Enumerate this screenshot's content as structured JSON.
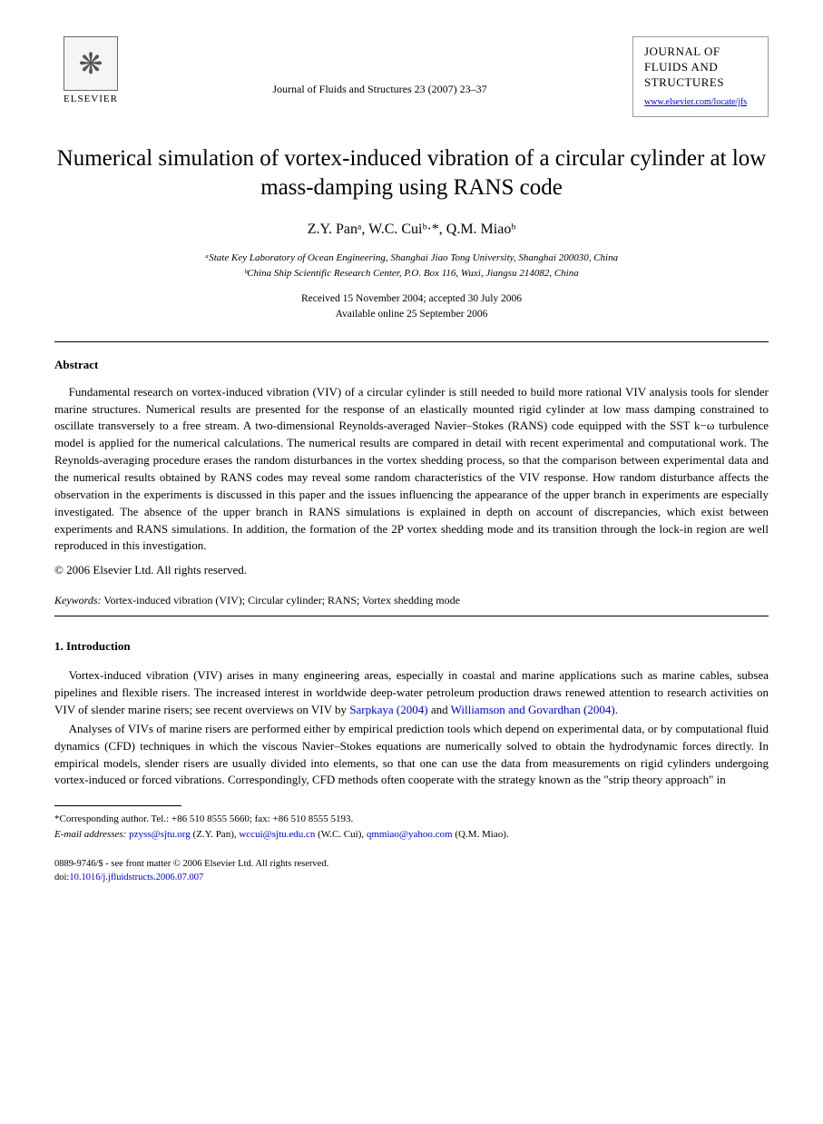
{
  "publisher": {
    "name": "ELSEVIER",
    "logo_glyph": "❋"
  },
  "journal": {
    "reference_line": "Journal of Fluids and Structures 23 (2007) 23–37",
    "box_title": "JOURNAL OF FLUIDS AND STRUCTURES",
    "url": "www.elsevier.com/locate/jfs"
  },
  "article": {
    "title": "Numerical simulation of vortex-induced vibration of a circular cylinder at low mass-damping using RANS code",
    "authors_html": "Z.Y. Panᵃ, W.C. Cuiᵇ·*, Q.M. Miaoᵇ",
    "affiliations": {
      "a": "ᵃState Key Laboratory of Ocean Engineering, Shanghai Jiao Tong University, Shanghai 200030, China",
      "b": "ᵇChina Ship Scientific Research Center, P.O. Box 116, Wuxi, Jiangsu 214082, China"
    },
    "dates": {
      "received_accepted": "Received 15 November 2004; accepted 30 July 2006",
      "online": "Available online 25 September 2006"
    }
  },
  "abstract": {
    "heading": "Abstract",
    "body": "Fundamental research on vortex-induced vibration (VIV) of a circular cylinder is still needed to build more rational VIV analysis tools for slender marine structures. Numerical results are presented for the response of an elastically mounted rigid cylinder at low mass damping constrained to oscillate transversely to a free stream. A two-dimensional Reynolds-averaged Navier–Stokes (RANS) code equipped with the SST k−ω turbulence model is applied for the numerical calculations. The numerical results are compared in detail with recent experimental and computational work. The Reynolds-averaging procedure erases the random disturbances in the vortex shedding process, so that the comparison between experimental data and the numerical results obtained by RANS codes may reveal some random characteristics of the VIV response. How random disturbance affects the observation in the experiments is discussed in this paper and the issues influencing the appearance of the upper branch in experiments are especially investigated. The absence of the upper branch in RANS simulations is explained in depth on account of discrepancies, which exist between experiments and RANS simulations. In addition, the formation of the 2P vortex shedding mode and its transition through the lock-in region are well reproduced in this investigation.",
    "copyright": "© 2006 Elsevier Ltd. All rights reserved."
  },
  "keywords": {
    "label": "Keywords:",
    "text": " Vortex-induced vibration (VIV); Circular cylinder; RANS; Vortex shedding mode"
  },
  "section": {
    "heading": "1.  Introduction",
    "para1_pre": "Vortex-induced vibration (VIV) arises in many engineering areas, especially in coastal and marine applications such as marine cables, subsea pipelines and flexible risers. The increased interest in worldwide deep-water petroleum production draws renewed attention to research activities on VIV of slender marine risers; see recent overviews on VIV by ",
    "ref1": "Sarpkaya (2004)",
    "para1_mid": " and ",
    "ref2": "Williamson and Govardhan (2004)",
    "para1_post": ".",
    "para2": "Analyses of VIVs of marine risers are performed either by empirical prediction tools which depend on experimental data, or by computational fluid dynamics (CFD) techniques in which the viscous Navier–Stokes equations are numerically solved to obtain the hydrodynamic forces directly. In empirical models, slender risers are usually divided into elements, so that one can use the data from measurements on rigid cylinders undergoing vortex-induced or forced vibrations. Correspondingly, CFD methods often cooperate with the strategy known as the \"strip theory approach\" in"
  },
  "footnote": {
    "corresponding": "*Corresponding author. Tel.: +86 510 8555 5660; fax: +86 510 8555 5193.",
    "emails_label": "E-mail addresses:",
    "email1": "pzyss@sjtu.org",
    "email1_name": " (Z.Y. Pan), ",
    "email2": "wccui@sjtu.edu.cn",
    "email2_name": " (W.C. Cui), ",
    "email3": "qmmiao@yahoo.com",
    "email3_name": " (Q.M. Miao)."
  },
  "footer": {
    "issn_line": "0889-9746/$ - see front matter © 2006 Elsevier Ltd. All rights reserved.",
    "doi_label": "doi:",
    "doi": "10.1016/j.jfluidstructs.2006.07.007"
  },
  "colors": {
    "link": "#0000cc",
    "text": "#000000",
    "bg": "#ffffff"
  }
}
